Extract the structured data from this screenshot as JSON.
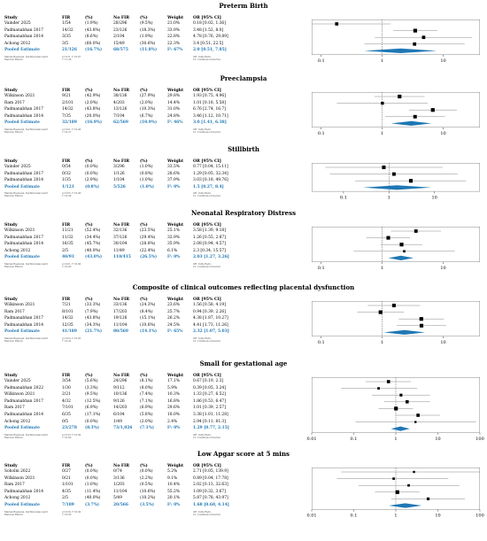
{
  "colors": {
    "diamond": "#1f77b4",
    "pooled_text": "#1f77b4"
  },
  "headers": [
    "Study",
    "FIR",
    "(%)",
    "No FIR",
    "(%)",
    "Weight",
    "OR [95% CI]"
  ],
  "chart_data": [
    {
      "type": "forest",
      "title": "Preterm Birth",
      "scale": "log",
      "xlim": [
        0.07,
        40
      ],
      "ticks": [
        0.1,
        1,
        10
      ],
      "tick_labels": [
        "0.1",
        "1",
        "10"
      ],
      "rows": [
        {
          "study": "Vainder 2025",
          "fir": "1/54",
          "fir_pct": "(1.9%)",
          "nofir": "28/296",
          "nofir_pct": "(9.5%)",
          "weight": "21.0%",
          "or_text": "0.18 [0.02, 1.36]",
          "or": 0.18,
          "lo": 0.02,
          "hi": 1.36,
          "w": 21.0
        },
        {
          "study": "Padmanabhan 2017",
          "fir": "14/32",
          "fir_pct": "(43.8%)",
          "nofir": "23/126",
          "nofir_pct": "(18.3%)",
          "weight": "33.9%",
          "or_text": "3.48 [1.52, 8.0]",
          "or": 3.48,
          "lo": 1.52,
          "hi": 8.0,
          "w": 33.9
        },
        {
          "study": "Padmanabhan 2014",
          "fir": "3/35",
          "fir_pct": "(8.6%)",
          "nofir": "2/104",
          "nofir_pct": "(1.9%)",
          "weight": "22.8%",
          "or_text": "4.78 [0.76, 29.89]",
          "or": 4.78,
          "lo": 0.76,
          "hi": 29.89,
          "w": 22.8
        },
        {
          "study": "Achong 2012",
          "fir": "3/5",
          "fir_pct": "(60.0%)",
          "nofir": "15/49",
          "nofir_pct": "(30.6%)",
          "weight": "22.3%",
          "or_text": "3.4 [0.51, 22.5]",
          "or": 3.4,
          "lo": 0.51,
          "hi": 22.5,
          "w": 22.3
        }
      ],
      "pooled": {
        "study": "Pooled Estimate",
        "fir": "21/126",
        "fir_pct": "(16.7%)",
        "nofir": "68/575",
        "nofir_pct": "(11.8%)",
        "weight": "I²: 67%",
        "or_text": "2.0 [0.51, 7.85]",
        "or": 2.0,
        "lo": 0.51,
        "hi": 7.85
      },
      "footnote_left": [
        "Mantel-Haenszel, DerSimonian-Laird",
        "Random Effects"
      ],
      "footnote_stats": [
        "p=0.31, I²=0.67",
        "τ²=1.28"
      ],
      "footnote_right": [
        "OR: Odds Ratio",
        "CI: Confidence Interval"
      ]
    },
    {
      "type": "forest",
      "title": "Preeclampsia",
      "scale": "log",
      "xlim": [
        0.07,
        40
      ],
      "ticks": [
        0.1,
        1,
        10
      ],
      "tick_labels": [
        "0.1",
        "1",
        "10"
      ],
      "rows": [
        {
          "study": "Wilkinson 2021",
          "fir": "9/21",
          "fir_pct": "(42.9%)",
          "nofir": "38/136",
          "nofir_pct": "(27.9%)",
          "weight": "29.8%",
          "or_text": "1.93 [0.75, 4.96]",
          "or": 1.93,
          "lo": 0.75,
          "hi": 4.96,
          "w": 29.8
        },
        {
          "study": "Ram 2017",
          "fir": "2/101",
          "fir_pct": "(2.0%)",
          "nofir": "4/203",
          "nofir_pct": "(2.0%)",
          "weight": "14.4%",
          "or_text": "1.01 [0.18, 5.58]",
          "or": 1.01,
          "lo": 0.18,
          "hi": 5.58,
          "w": 14.4
        },
        {
          "study": "Padmanabhan 2017",
          "fir": "14/32",
          "fir_pct": "(43.8%)",
          "nofir": "13/126",
          "nofir_pct": "(10.3%)",
          "weight": "31.0%",
          "or_text": "6.76 [2.74, 16.7]",
          "or": 6.76,
          "lo": 2.74,
          "hi": 16.7,
          "w": 31.0
        },
        {
          "study": "Padmanabhan 2014",
          "fir": "7/35",
          "fir_pct": "(20.0%)",
          "nofir": "7/104",
          "nofir_pct": "(6.7%)",
          "weight": "24.8%",
          "or_text": "3.46 [1.12, 10.71]",
          "or": 3.46,
          "lo": 1.12,
          "hi": 10.71,
          "w": 24.8
        }
      ],
      "pooled": {
        "study": "Pooled Estimate",
        "fir": "32/189",
        "fir_pct": "(16.9%)",
        "nofir": "62/569",
        "nofir_pct": "(10.9%)",
        "weight": "I²: 46%",
        "or_text": "3.0 [1.41, 6.38]",
        "or": 3.0,
        "lo": 1.41,
        "hi": 6.38
      },
      "footnote_left": [
        "Mantel-Haenszel, DerSimonian-Laird",
        "Random Effects"
      ],
      "footnote_stats": [
        "p<0.01, I²=0.46",
        "τ²=0.27"
      ],
      "footnote_right": [
        "OR: Odds Ratio",
        "CI: Confidence Interval"
      ]
    },
    {
      "type": "forest",
      "title": "Stillbirth",
      "scale": "log",
      "xlim": [
        0.02,
        100
      ],
      "ticks": [
        0.1,
        1,
        10
      ],
      "tick_labels": [
        "0.1",
        "1",
        "10"
      ],
      "rows": [
        {
          "study": "Vainder 2025",
          "fir": "0/54",
          "fir_pct": "(0.0%)",
          "nofir": "3/296",
          "nofir_pct": "(1.0%)",
          "weight": "33.5%",
          "or_text": "0.77 [0.04, 15.11]",
          "or": 0.77,
          "lo": 0.04,
          "hi": 15.11,
          "w": 33.5
        },
        {
          "study": "Padmanabhan 2017",
          "fir": "0/32",
          "fir_pct": "(0.0%)",
          "nofir": "1/126",
          "nofir_pct": "(0.8%)",
          "weight": "28.6%",
          "or_text": "1.29 [0.05, 32.34]",
          "or": 1.29,
          "lo": 0.05,
          "hi": 32.34,
          "w": 28.6
        },
        {
          "study": "Padmanabhan 2014",
          "fir": "1/35",
          "fir_pct": "(2.9%)",
          "nofir": "1/104",
          "nofir_pct": "(1.0%)",
          "weight": "37.9%",
          "or_text": "3.03 [0.18, 49.76]",
          "or": 3.03,
          "lo": 0.18,
          "hi": 49.76,
          "w": 37.9
        }
      ],
      "pooled": {
        "study": "Pooled Estimate",
        "fir": "1/121",
        "fir_pct": "(0.8%)",
        "nofir": "5/526",
        "nofir_pct": "(1.0%)",
        "weight": "I²: 0%",
        "or_text": "1.5 [0.27, 8.4]",
        "or": 1.5,
        "lo": 0.27,
        "hi": 8.4
      },
      "footnote_left": [
        "Mantel-Haenszel, DerSimonian-Laird",
        "Random Effects"
      ],
      "footnote_stats": [
        "p=0.65, I²=0.00",
        "τ²=0.00"
      ],
      "footnote_right": [
        "OR: Odds Ratio",
        "CI: Confidence Interval"
      ]
    },
    {
      "type": "forest",
      "title": "Neonatal Respiratory Distress",
      "scale": "log",
      "xlim": [
        0.07,
        40
      ],
      "ticks": [
        0.1,
        1,
        10
      ],
      "tick_labels": [
        "0.1",
        "1",
        "10"
      ],
      "rows": [
        {
          "study": "Wilkinson 2021",
          "fir": "11/21",
          "fir_pct": "(52.4%)",
          "nofir": "32/136",
          "nofir_pct": "(23.5%)",
          "weight": "25.1%",
          "or_text": "3.58 [1.39, 9.18]",
          "or": 3.58,
          "lo": 1.39,
          "hi": 9.18,
          "w": 25.1
        },
        {
          "study": "Padmanabhan 2017",
          "fir": "11/32",
          "fir_pct": "(34.4%)",
          "nofir": "37/126",
          "nofir_pct": "(29.4%)",
          "weight": "32.9%",
          "or_text": "1.26 [0.55, 2.87]",
          "or": 1.26,
          "lo": 0.55,
          "hi": 2.87,
          "w": 32.9
        },
        {
          "study": "Padmanabhan 2014",
          "fir": "16/35",
          "fir_pct": "(45.7%)",
          "nofir": "30/104",
          "nofir_pct": "(28.8%)",
          "weight": "35.9%",
          "or_text": "2.08 [0.94, 4.57]",
          "or": 2.08,
          "lo": 0.94,
          "hi": 4.57,
          "w": 35.9
        },
        {
          "study": "Achong 2012",
          "fir": "2/5",
          "fir_pct": "(40.0%)",
          "nofir": "11/49",
          "nofir_pct": "(22.4%)",
          "weight": "6.1%",
          "or_text": "2.3 [0.34, 15.57]",
          "or": 2.3,
          "lo": 0.34,
          "hi": 15.57,
          "w": 6.1
        }
      ],
      "pooled": {
        "study": "Pooled Estimate",
        "fir": "40/93",
        "fir_pct": "(43.0%)",
        "nofir": "110/415",
        "nofir_pct": "(26.5%)",
        "weight": "I²: 0%",
        "or_text": "2.03 [1.27, 3.26]",
        "or": 2.03,
        "lo": 1.27,
        "hi": 3.26
      },
      "footnote_left": [
        "Mantel-Haenszel, DerSimonian-Laird",
        "Random Effects"
      ],
      "footnote_stats": [
        "p<0.01, I²=0.00",
        "τ²=0.00"
      ],
      "footnote_right": [
        "OR: Odds Ratio",
        "CI: Confidence Interval"
      ]
    },
    {
      "type": "forest",
      "title": "Composite of clinical outcomes reflecting placental dysfunction",
      "scale": "log",
      "xlim": [
        0.07,
        40
      ],
      "ticks": [
        0.1,
        1,
        10
      ],
      "tick_labels": [
        "0.1",
        "1",
        "10"
      ],
      "rows": [
        {
          "study": "Wilkinson 2021",
          "fir": "7/21",
          "fir_pct": "(33.3%)",
          "nofir": "33/136",
          "nofir_pct": "(24.3%)",
          "weight": "23.6%",
          "or_text": "1.56 [0.58, 4.19]",
          "or": 1.56,
          "lo": 0.58,
          "hi": 4.19,
          "w": 23.6
        },
        {
          "study": "Ram 2017",
          "fir": "8/101",
          "fir_pct": "(7.9%)",
          "nofir": "17/203",
          "nofir_pct": "(8.4%)",
          "weight": "25.7%",
          "or_text": "0.94 [0.39, 2.26]",
          "or": 0.94,
          "lo": 0.39,
          "hi": 2.26,
          "w": 25.7
        },
        {
          "study": "Padmanabhan 2017",
          "fir": "14/32",
          "fir_pct": "(43.8%)",
          "nofir": "19/126",
          "nofir_pct": "(15.1%)",
          "weight": "26.2%",
          "or_text": "4.38 [1.87, 10.27]",
          "or": 4.38,
          "lo": 1.87,
          "hi": 10.27,
          "w": 26.2
        },
        {
          "study": "Padmanabhan 2014",
          "fir": "12/35",
          "fir_pct": "(34.3%)",
          "nofir": "11/104",
          "nofir_pct": "(10.6%)",
          "weight": "24.5%",
          "or_text": "4.41 [1.73, 11.26]",
          "or": 4.41,
          "lo": 1.73,
          "hi": 11.26,
          "w": 24.5
        }
      ],
      "pooled": {
        "study": "Pooled Estimate",
        "fir": "41/189",
        "fir_pct": "(21.7%)",
        "nofir": "80/569",
        "nofir_pct": "(14.1%)",
        "weight": "I²: 65%",
        "or_text": "2.32 [1.07, 5.03]",
        "or": 2.32,
        "lo": 1.07,
        "hi": 5.03
      },
      "footnote_left": [
        "Mantel-Haenszel, DerSimonian-Laird",
        "Random Effects"
      ],
      "footnote_stats": [
        "p=0.03, I²=0.65",
        "τ²=0.41"
      ],
      "footnote_right": [
        "OR: Odds Ratio",
        "CI: Confidence Interval"
      ]
    },
    {
      "type": "forest",
      "title": "Small for gestational age",
      "scale": "log",
      "xlim": [
        0.01,
        100
      ],
      "ticks": [
        0.01,
        0.1,
        1,
        10,
        100
      ],
      "tick_labels": [
        "0.01",
        "0.1",
        "1",
        "10",
        "100"
      ],
      "rows": [
        {
          "study": "Vainder 2025",
          "fir": "3/54",
          "fir_pct": "(5.6%)",
          "nofir": "24/296",
          "nofir_pct": "(8.1%)",
          "weight": "17.1%",
          "or_text": "0.67 [0.19, 2.3]",
          "or": 0.67,
          "lo": 0.19,
          "hi": 2.3,
          "w": 17.1
        },
        {
          "study": "Padmanabhan 2022",
          "fir": "1/30",
          "fir_pct": "(3.3%)",
          "nofir": "9/112",
          "nofir_pct": "(8.0%)",
          "weight": "5.9%",
          "or_text": "0.39 [0.05, 3.24]",
          "or": 0.39,
          "lo": 0.05,
          "hi": 3.24,
          "w": 5.9
        },
        {
          "study": "Wilkinson 2021",
          "fir": "2/21",
          "fir_pct": "(9.5%)",
          "nofir": "10/136",
          "nofir_pct": "(7.4%)",
          "weight": "10.3%",
          "or_text": "1.33 [0.27, 6.52]",
          "or": 1.33,
          "lo": 0.27,
          "hi": 6.52,
          "w": 10.3
        },
        {
          "study": "Padmanabhan 2017",
          "fir": "4/32",
          "fir_pct": "(12.5%)",
          "nofir": "9/126",
          "nofir_pct": "(7.1%)",
          "weight": "16.8%",
          "or_text": "1.86 [0.53, 6.47]",
          "or": 1.86,
          "lo": 0.53,
          "hi": 6.47,
          "w": 16.8
        },
        {
          "study": "Ram 2017",
          "fir": "7/101",
          "fir_pct": "(6.9%)",
          "nofir": "14/203",
          "nofir_pct": "(6.9%)",
          "weight": "29.6%",
          "or_text": "1.01 [0.39, 2.57]",
          "or": 1.01,
          "lo": 0.39,
          "hi": 2.57,
          "w": 29.6
        },
        {
          "study": "Padmanabhan 2014",
          "fir": "6/35",
          "fir_pct": "(17.1%)",
          "nofir": "6/104",
          "nofir_pct": "(5.8%)",
          "weight": "18.0%",
          "or_text": "3.38 [1.01, 11.28]",
          "or": 3.38,
          "lo": 1.01,
          "hi": 11.28,
          "w": 18.0
        },
        {
          "study": "Achong 2012",
          "fir": "0/5",
          "fir_pct": "(0.0%)",
          "nofir": "1/49",
          "nofir_pct": "(2.0%)",
          "weight": "2.4%",
          "or_text": "2.94 [0.11, 81.3]",
          "or": 2.94,
          "lo": 0.11,
          "hi": 81.3,
          "w": 2.4
        }
      ],
      "pooled": {
        "study": "Pooled Estimate",
        "fir": "23/278",
        "fir_pct": "(8.3%)",
        "nofir": "73/1,026",
        "nofir_pct": "(7.1%)",
        "weight": "I²: 0%",
        "or_text": "1.29 [0.77, 2.15]",
        "or": 1.29,
        "lo": 0.77,
        "hi": 2.15
      },
      "footnote_left": [
        "Mantel-Haenszel, DerSimonian-Laird",
        "Random Effects"
      ],
      "footnote_stats": [
        "p=0.33, I²=0.00",
        "τ²=0.00"
      ],
      "footnote_right": [
        "OR: Odds Ratio",
        "CI: Confidence Interval"
      ]
    },
    {
      "type": "forest",
      "title": "Low Apgar score at 5 mins",
      "scale": "log",
      "xlim": [
        0.01,
        100
      ],
      "ticks": [
        0.01,
        0.1,
        1,
        10,
        100
      ],
      "tick_labels": [
        "0.01",
        "0.1",
        "1",
        "10",
        "100"
      ],
      "rows": [
        {
          "study": "Soholm 2022",
          "fir": "0/27",
          "fir_pct": "(0.0%)",
          "nofir": "0/74",
          "nofir_pct": "(0.0%)",
          "weight": "5.2%",
          "or_text": "2.71 [0.05, 139.9]",
          "or": 2.71,
          "lo": 0.05,
          "hi": 139.9,
          "w": 5.2
        },
        {
          "study": "Wilkinson 2021",
          "fir": "0/21",
          "fir_pct": "(0.0%)",
          "nofir": "3/136",
          "nofir_pct": "(2.2%)",
          "weight": "9.1%",
          "or_text": "0.89 [0.04, 17.78]",
          "or": 0.89,
          "lo": 0.04,
          "hi": 17.78,
          "w": 9.1
        },
        {
          "study": "Ram 2017",
          "fir": "1/101",
          "fir_pct": "(1.0%)",
          "nofir": "1/203",
          "nofir_pct": "(0.5%)",
          "weight": "10.4%",
          "or_text": "2.02 [0.13, 32.63]",
          "or": 2.02,
          "lo": 0.13,
          "hi": 32.63,
          "w": 10.4
        },
        {
          "study": "Padmanabhan 2014",
          "fir": "4/35",
          "fir_pct": "(11.4%)",
          "nofir": "11/104",
          "nofir_pct": "(10.6%)",
          "weight": "55.2%",
          "or_text": "1.09 [0.32, 3.67]",
          "or": 1.09,
          "lo": 0.32,
          "hi": 3.67,
          "w": 55.2
        },
        {
          "study": "Achong 2012",
          "fir": "2/5",
          "fir_pct": "(40.0%)",
          "nofir": "5/49",
          "nofir_pct": "(10.2%)",
          "weight": "20.1%",
          "or_text": "5.87 [0.78, 43.97]",
          "or": 5.87,
          "lo": 0.78,
          "hi": 43.97,
          "w": 20.1
        }
      ],
      "pooled": {
        "study": "Pooled Estimate",
        "fir": "7/189",
        "fir_pct": "(3.7%)",
        "nofir": "20/566",
        "nofir_pct": "(3.5%)",
        "weight": "I²: 0%",
        "or_text": "1.68 [0.68, 4.14]",
        "or": 1.68,
        "lo": 0.68,
        "hi": 4.14
      },
      "footnote_left": [
        "Mantel-Haenszel, DerSimonian-Laird",
        "Random Effects"
      ],
      "footnote_stats": [
        "p=0.26, I²=0.00",
        "τ²=0.00"
      ],
      "footnote_right": [
        "OR: Odds Ratio",
        "CI: Confidence Interval"
      ]
    }
  ]
}
